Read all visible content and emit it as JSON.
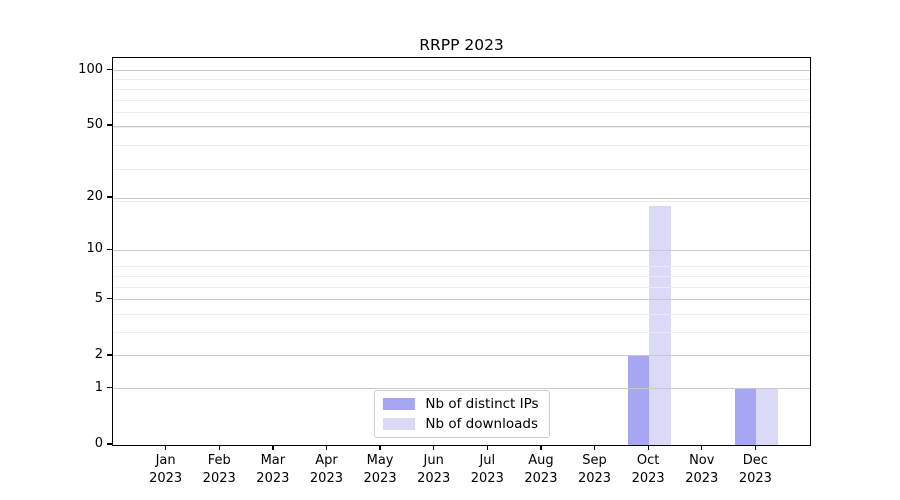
{
  "title": "RRPP 2023",
  "chart_data": {
    "type": "bar",
    "title": "RRPP 2023",
    "categories": [
      {
        "month": "Jan",
        "year": "2023"
      },
      {
        "month": "Feb",
        "year": "2023"
      },
      {
        "month": "Mar",
        "year": "2023"
      },
      {
        "month": "Apr",
        "year": "2023"
      },
      {
        "month": "May",
        "year": "2023"
      },
      {
        "month": "Jun",
        "year": "2023"
      },
      {
        "month": "Jul",
        "year": "2023"
      },
      {
        "month": "Aug",
        "year": "2023"
      },
      {
        "month": "Sep",
        "year": "2023"
      },
      {
        "month": "Oct",
        "year": "2023"
      },
      {
        "month": "Nov",
        "year": "2023"
      },
      {
        "month": "Dec",
        "year": "2023"
      }
    ],
    "series": [
      {
        "name": "Nb of distinct IPs",
        "color": "#a6a6f2",
        "values": [
          0,
          0,
          0,
          0,
          0,
          0,
          0,
          0,
          0,
          2,
          0,
          1
        ]
      },
      {
        "name": "Nb of downloads",
        "color": "#dadaf8",
        "values": [
          0,
          0,
          0,
          0,
          0,
          0,
          0,
          0,
          0,
          18,
          0,
          1
        ]
      }
    ],
    "xlabel": "",
    "ylabel": "",
    "y_scale": "log1p",
    "ylim": [
      0,
      117
    ],
    "y_ticks": [
      0,
      1,
      2,
      5,
      10,
      20,
      50,
      100
    ],
    "y_minor_gridlines": [
      1,
      2,
      3,
      4,
      5,
      6,
      7,
      8,
      19,
      29,
      39,
      49,
      59,
      69,
      79,
      89
    ],
    "grid": true,
    "legend_position": "lower center",
    "colors": {
      "grid_major": "#c9c9c9",
      "grid_minor": "#ececec",
      "spine": "#000000",
      "legend_border": "#cccccc"
    }
  }
}
